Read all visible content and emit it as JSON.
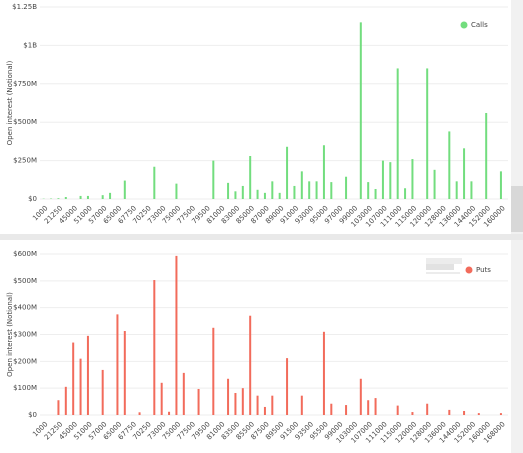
{
  "chart_data": [
    {
      "type": "bar",
      "y_label": "Open interest (Notional)",
      "legend": "top-right",
      "grid": true,
      "categories": [
        "1000",
        null,
        "21250",
        null,
        "45000",
        null,
        "51000",
        null,
        "57000",
        null,
        "65000",
        null,
        "67750",
        null,
        "70250",
        null,
        "73000",
        null,
        "75000",
        null,
        "77500",
        null,
        "79500",
        null,
        "81000",
        null,
        "83000",
        null,
        "85000",
        null,
        "87000",
        null,
        "89000",
        null,
        "91000",
        null,
        "93000",
        null,
        "95000",
        null,
        "97000",
        null,
        "99000",
        null,
        "103000",
        null,
        "107000",
        null,
        "111000",
        null,
        "115000",
        null,
        "120000",
        null,
        "128000",
        null,
        "136000",
        null,
        "144000",
        null,
        "152000",
        null,
        "160000",
        null
      ],
      "series": [
        {
          "name": "Calls",
          "color": "#72dd7e",
          "values": [
            2000000,
            3000000,
            5000000,
            13000000,
            0,
            20000000,
            20000000,
            0,
            25000000,
            40000000,
            0,
            120000000,
            0,
            0,
            0,
            210000000,
            0,
            0,
            100000000,
            0,
            0,
            0,
            0,
            250000000,
            0,
            105000000,
            50000000,
            85000000,
            280000000,
            60000000,
            40000000,
            115000000,
            40000000,
            340000000,
            85000000,
            180000000,
            115000000,
            115000000,
            350000000,
            110000000,
            0,
            145000000,
            0,
            1150000000,
            110000000,
            65000000,
            250000000,
            240000000,
            850000000,
            70000000,
            260000000,
            0,
            850000000,
            190000000,
            0,
            440000000,
            115000000,
            330000000,
            115000000,
            0,
            560000000,
            0,
            180000000,
            0
          ]
        }
      ],
      "ylim": [
        0,
        1250000000
      ],
      "yticks": [
        {
          "value": 0,
          "label": "$0"
        },
        {
          "value": 250000000,
          "label": "$250M"
        },
        {
          "value": 500000000,
          "label": "$500M"
        },
        {
          "value": 750000000,
          "label": "$750M"
        },
        {
          "value": 1000000000,
          "label": "$1B"
        },
        {
          "value": 1250000000,
          "label": "$1.25B"
        }
      ]
    },
    {
      "type": "bar",
      "y_label": "Open interest (Notional)",
      "legend": "top-right",
      "grid": true,
      "categories": [
        "1000",
        null,
        "21250",
        null,
        "45000",
        null,
        "51000",
        null,
        "57000",
        null,
        "65000",
        null,
        "67750",
        null,
        "70250",
        null,
        "73000",
        null,
        "75000",
        null,
        "77500",
        null,
        "79500",
        null,
        "81000",
        null,
        "83500",
        null,
        "85500",
        null,
        "87500",
        null,
        "89500",
        null,
        "91500",
        null,
        "93500",
        null,
        "95500",
        null,
        "99000",
        null,
        "103000",
        null,
        "107000",
        null,
        "111000",
        null,
        "115000",
        null,
        "120000",
        null,
        "128000",
        null,
        "136000",
        null,
        "144000",
        null,
        "152000",
        null,
        "160000",
        null,
        "168000",
        null
      ],
      "series": [
        {
          "name": "Puts",
          "color": "#f26b5b",
          "values": [
            0,
            0,
            55000000,
            105000000,
            270000000,
            210000000,
            295000000,
            0,
            168000000,
            0,
            375000000,
            313000000,
            0,
            10000000,
            0,
            503000000,
            120000000,
            12000000,
            593000000,
            157000000,
            0,
            97000000,
            0,
            325000000,
            0,
            135000000,
            82000000,
            100000000,
            370000000,
            72000000,
            30000000,
            72000000,
            0,
            212000000,
            0,
            72000000,
            0,
            0,
            310000000,
            42000000,
            0,
            37000000,
            0,
            135000000,
            55000000,
            63000000,
            0,
            0,
            35000000,
            0,
            11000000,
            0,
            42000000,
            0,
            0,
            19000000,
            0,
            15000000,
            0,
            7000000,
            0,
            0,
            7000000,
            0
          ]
        }
      ],
      "ylim": [
        0,
        600000000
      ],
      "yticks": [
        {
          "value": 0,
          "label": "$0"
        },
        {
          "value": 100000000,
          "label": "$100M"
        },
        {
          "value": 200000000,
          "label": "$200M"
        },
        {
          "value": 300000000,
          "label": "$300M"
        },
        {
          "value": 400000000,
          "label": "$400M"
        },
        {
          "value": 500000000,
          "label": "$500M"
        },
        {
          "value": 600000000,
          "label": "$600M"
        }
      ]
    }
  ]
}
